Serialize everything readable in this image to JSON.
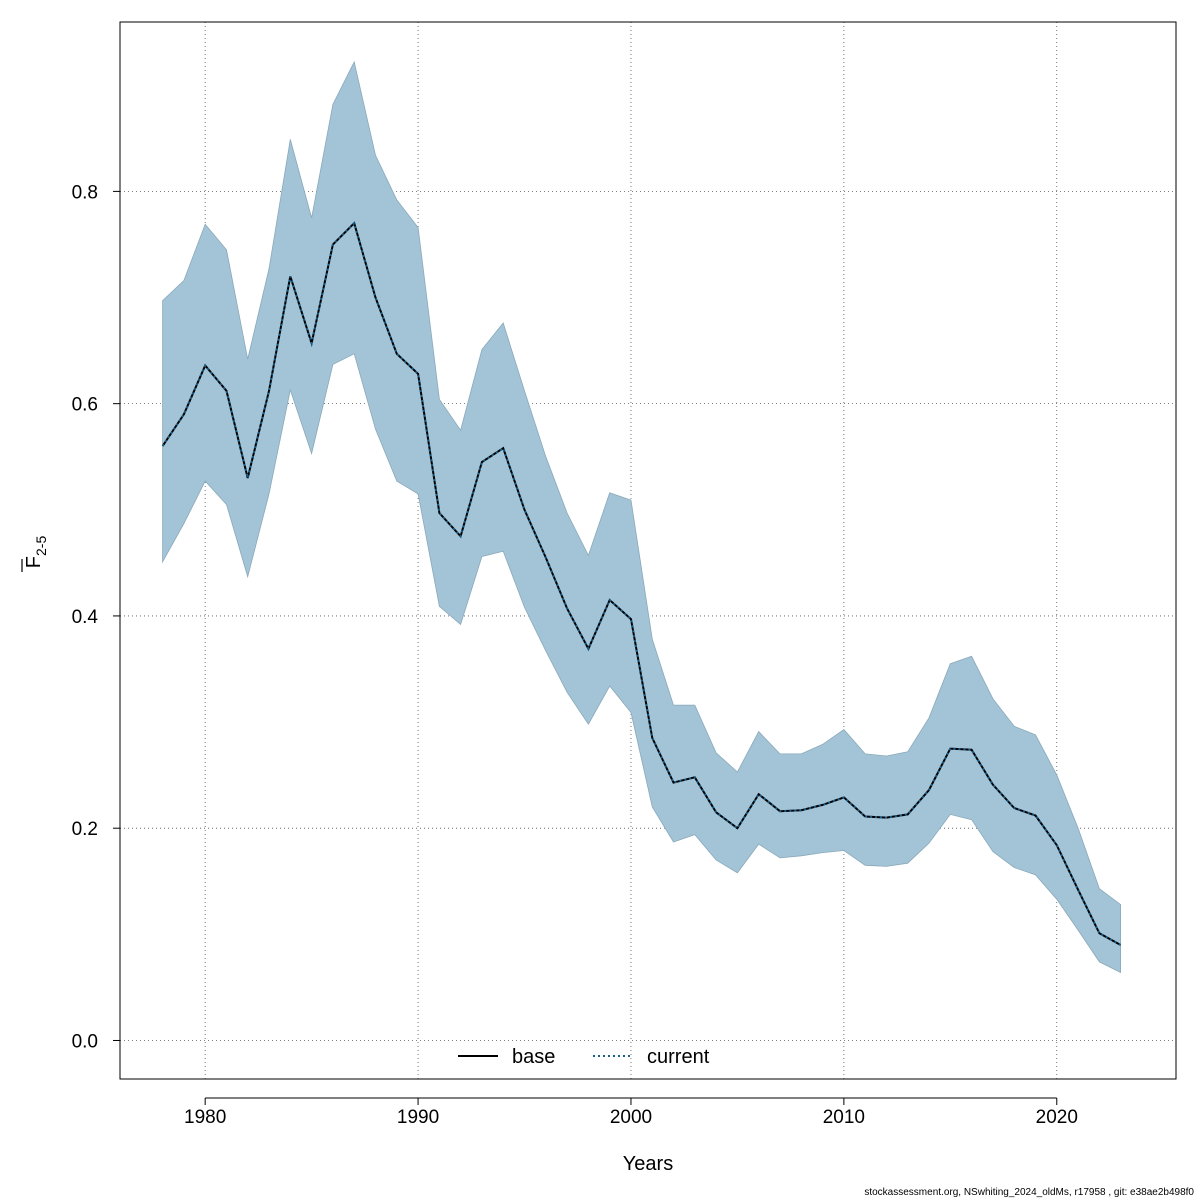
{
  "chart_data": {
    "type": "line",
    "xlabel": "Years",
    "ylabel_main": "F",
    "ylabel_sub": "2-5",
    "xlim": [
      1976,
      2025.6
    ],
    "ylim": [
      -0.0363,
      0.9596
    ],
    "xticks": [
      1980,
      1990,
      2000,
      2010,
      2020
    ],
    "yticks": [
      0.0,
      0.2,
      0.4,
      0.6,
      0.8
    ],
    "ytick_labels": [
      "0.0",
      "0.2",
      "0.4",
      "0.6",
      "0.8"
    ],
    "grid": true,
    "legend_position": "bottom",
    "legend": [
      {
        "name": "base",
        "color": "#000000",
        "style": "solid"
      },
      {
        "name": "current",
        "color": "#1a5f8c",
        "style": "dotted"
      }
    ],
    "band_color": "#a3c4d6",
    "x": [
      1978,
      1979,
      1980,
      1981,
      1982,
      1983,
      1984,
      1985,
      1986,
      1987,
      1988,
      1989,
      1990,
      1991,
      1992,
      1993,
      1994,
      1995,
      1996,
      1997,
      1998,
      1999,
      2000,
      2001,
      2002,
      2003,
      2004,
      2005,
      2006,
      2007,
      2008,
      2009,
      2010,
      2011,
      2012,
      2013,
      2014,
      2015,
      2016,
      2017,
      2018,
      2019,
      2020,
      2021,
      2022,
      2023
    ],
    "series": [
      {
        "name": "base",
        "values": [
          0.56,
          0.59,
          0.636,
          0.612,
          0.53,
          0.612,
          0.72,
          0.657,
          0.75,
          0.77,
          0.7,
          0.647,
          0.628,
          0.497,
          0.475,
          0.545,
          0.558,
          0.5,
          0.455,
          0.407,
          0.369,
          0.415,
          0.397,
          0.285,
          0.243,
          0.248,
          0.215,
          0.2,
          0.232,
          0.216,
          0.217,
          0.222,
          0.229,
          0.211,
          0.21,
          0.213,
          0.236,
          0.275,
          0.274,
          0.241,
          0.219,
          0.212,
          0.184,
          0.142,
          0.101,
          0.09
        ]
      },
      {
        "name": "current",
        "values": [
          0.56,
          0.59,
          0.636,
          0.612,
          0.53,
          0.612,
          0.72,
          0.657,
          0.75,
          0.77,
          0.7,
          0.647,
          0.628,
          0.497,
          0.475,
          0.545,
          0.558,
          0.5,
          0.455,
          0.407,
          0.369,
          0.415,
          0.397,
          0.285,
          0.243,
          0.248,
          0.215,
          0.2,
          0.232,
          0.216,
          0.217,
          0.222,
          0.229,
          0.211,
          0.21,
          0.213,
          0.236,
          0.275,
          0.274,
          0.241,
          0.219,
          0.212,
          0.184,
          0.142,
          0.101,
          0.09
        ]
      }
    ],
    "band_upper": [
      0.697,
      0.716,
      0.769,
      0.745,
      0.642,
      0.727,
      0.849,
      0.775,
      0.882,
      0.922,
      0.834,
      0.792,
      0.766,
      0.604,
      0.575,
      0.651,
      0.676,
      0.612,
      0.55,
      0.497,
      0.457,
      0.516,
      0.509,
      0.378,
      0.316,
      0.316,
      0.271,
      0.253,
      0.291,
      0.27,
      0.27,
      0.279,
      0.293,
      0.27,
      0.268,
      0.272,
      0.304,
      0.355,
      0.362,
      0.322,
      0.296,
      0.288,
      0.25,
      0.2,
      0.143,
      0.128
    ],
    "band_lower": [
      0.451,
      0.487,
      0.527,
      0.505,
      0.437,
      0.515,
      0.613,
      0.553,
      0.637,
      0.647,
      0.576,
      0.527,
      0.515,
      0.409,
      0.392,
      0.456,
      0.461,
      0.408,
      0.367,
      0.328,
      0.298,
      0.334,
      0.309,
      0.22,
      0.187,
      0.194,
      0.17,
      0.158,
      0.185,
      0.172,
      0.174,
      0.177,
      0.179,
      0.165,
      0.164,
      0.167,
      0.186,
      0.213,
      0.208,
      0.178,
      0.163,
      0.156,
      0.133,
      0.104,
      0.074,
      0.064
    ]
  },
  "footer_text": "stockassessment.org, NSwhiting_2024_oldMs, r17958 , git: e38ae2b498f0"
}
